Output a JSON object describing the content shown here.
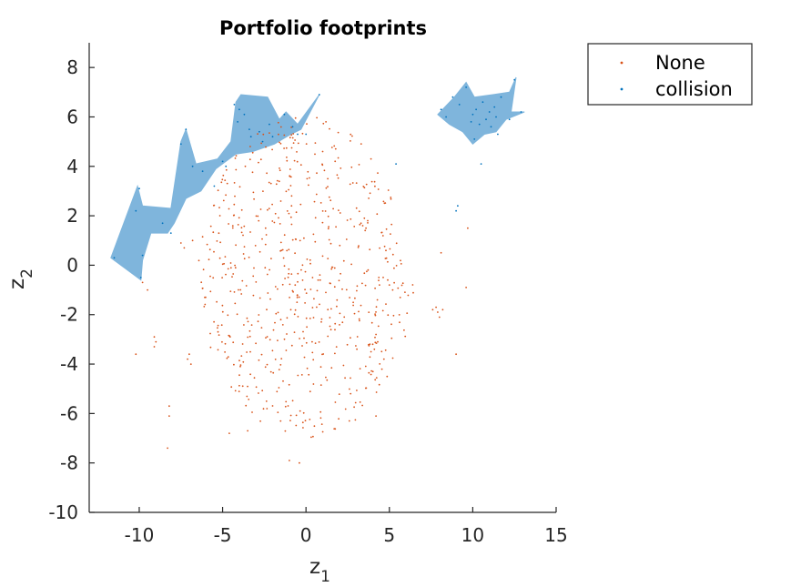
{
  "chart_data": {
    "type": "scatter",
    "title": "Portfolio footprints",
    "xlabel": "z",
    "xlabel_sub": "1",
    "ylabel": "z",
    "ylabel_sub": "2",
    "xlim": [
      -13,
      15
    ],
    "ylim": [
      -10,
      9
    ],
    "xticks": [
      -10,
      -5,
      0,
      5,
      10,
      15
    ],
    "yticks": [
      -10,
      -8,
      -6,
      -4,
      -2,
      0,
      2,
      4,
      6,
      8
    ],
    "grid": false,
    "legend_placement": "outside-top-right",
    "series": [
      {
        "name": "None",
        "color": "#d95319",
        "marker": "dot",
        "distribution": {
          "center": [
            0,
            -0.5
          ],
          "radius": 6.5,
          "count": 620
        },
        "extra_points": [
          [
            -8.3,
            -7.4
          ],
          [
            -8.2,
            -5.7
          ],
          [
            -8.2,
            -6.1
          ],
          [
            -9.1,
            -2.9
          ],
          [
            -9.0,
            -3.1
          ],
          [
            -9.1,
            -3.3
          ],
          [
            -10.2,
            -3.6
          ],
          [
            -9.5,
            -1.0
          ],
          [
            -9.8,
            -0.7
          ],
          [
            9.6,
            -0.9
          ],
          [
            9.0,
            -3.6
          ],
          [
            9.7,
            1.5
          ],
          [
            8.1,
            0.5
          ],
          [
            7.6,
            -1.8
          ],
          [
            7.9,
            -1.9
          ],
          [
            8.0,
            -2.1
          ],
          [
            7.8,
            -1.7
          ],
          [
            8.2,
            -1.8
          ],
          [
            3.9,
            4.3
          ],
          [
            -1.0,
            -7.9
          ],
          [
            -0.4,
            -8.0
          ],
          [
            1.0,
            4.6
          ],
          [
            -3.5,
            -6.7
          ],
          [
            -4.6,
            -6.8
          ],
          [
            4.2,
            -6.1
          ],
          [
            2.6,
            -6.3
          ],
          [
            3.3,
            1.7
          ],
          [
            3.5,
            1.9
          ],
          [
            3.6,
            1.5
          ],
          [
            3.4,
            1.6
          ],
          [
            3.7,
            1.8
          ],
          [
            4.0,
            -3.2
          ],
          [
            4.1,
            -3.4
          ],
          [
            4.3,
            -3.1
          ],
          [
            3.9,
            -3.5
          ],
          [
            4.2,
            -2.8
          ],
          [
            -7.1,
            -3.8
          ],
          [
            -6.9,
            -4.0
          ],
          [
            -7.0,
            -3.6
          ],
          [
            5.0,
            -0.8
          ],
          [
            5.2,
            -1.0
          ],
          [
            4.9,
            -0.6
          ],
          [
            -7.5,
            0.9
          ],
          [
            -7.3,
            0.7
          ],
          [
            -6.8,
            1.0
          ]
        ]
      },
      {
        "name": "collision",
        "color": "#0072bd",
        "marker": "dot",
        "points": [
          [
            -11.5,
            0.3
          ],
          [
            -10.2,
            2.2
          ],
          [
            -10.0,
            3.1
          ],
          [
            -9.8,
            0.4
          ],
          [
            -9.9,
            -0.5
          ],
          [
            -8.1,
            1.3
          ],
          [
            -8.6,
            1.7
          ],
          [
            -7.5,
            4.9
          ],
          [
            -7.2,
            5.5
          ],
          [
            -6.8,
            4.0
          ],
          [
            -6.2,
            3.8
          ],
          [
            -5.5,
            3.2
          ],
          [
            -5.0,
            4.2
          ],
          [
            -4.8,
            4.0
          ],
          [
            -4.3,
            6.5
          ],
          [
            -4.0,
            6.3
          ],
          [
            -4.1,
            5.8
          ],
          [
            -3.7,
            6.1
          ],
          [
            -3.4,
            5.5
          ],
          [
            -3.3,
            5.2
          ],
          [
            -2.8,
            5.4
          ],
          [
            -2.6,
            5.0
          ],
          [
            -2.2,
            5.7
          ],
          [
            -2.0,
            5.2
          ],
          [
            -1.3,
            6.1
          ],
          [
            -0.8,
            5.6
          ],
          [
            -0.5,
            5.3
          ],
          [
            0.0,
            5.3
          ],
          [
            0.8,
            6.9
          ],
          [
            5.4,
            4.1
          ],
          [
            9.1,
            2.4
          ],
          [
            9.0,
            2.2
          ],
          [
            10.5,
            4.1
          ],
          [
            8.1,
            6.3
          ],
          [
            8.4,
            6.0
          ],
          [
            8.8,
            6.8
          ],
          [
            9.2,
            6.5
          ],
          [
            9.6,
            7.2
          ],
          [
            9.9,
            5.8
          ],
          [
            10.0,
            6.1
          ],
          [
            10.2,
            6.3
          ],
          [
            10.4,
            5.7
          ],
          [
            10.6,
            6.6
          ],
          [
            10.8,
            5.9
          ],
          [
            11.0,
            6.2
          ],
          [
            11.1,
            5.6
          ],
          [
            11.3,
            6.4
          ],
          [
            11.4,
            6.0
          ],
          [
            11.7,
            6.8
          ],
          [
            12.2,
            5.9
          ],
          [
            12.5,
            7.5
          ],
          [
            12.9,
            6.2
          ],
          [
            11.5,
            5.3
          ],
          [
            10.1,
            5.1
          ]
        ],
        "footprints": [
          [
            [
              -11.7,
              0.3
            ],
            [
              -10.1,
              3.2
            ],
            [
              -9.8,
              2.4
            ],
            [
              -8.1,
              2.3
            ],
            [
              -7.5,
              5.0
            ],
            [
              -7.2,
              5.5
            ],
            [
              -6.6,
              4.1
            ],
            [
              -5.3,
              4.3
            ],
            [
              -4.5,
              5.0
            ],
            [
              -4.2,
              6.6
            ],
            [
              -3.9,
              6.9
            ],
            [
              -2.3,
              6.8
            ],
            [
              -1.6,
              5.9
            ],
            [
              -1.2,
              6.2
            ],
            [
              -0.5,
              5.7
            ],
            [
              0.8,
              6.9
            ],
            [
              -0.3,
              5.5
            ],
            [
              -0.9,
              5.3
            ],
            [
              -1.9,
              4.9
            ],
            [
              -3.2,
              4.6
            ],
            [
              -4.2,
              4.5
            ],
            [
              -5.4,
              3.9
            ],
            [
              -6.3,
              3.0
            ],
            [
              -7.2,
              2.7
            ],
            [
              -7.9,
              1.7
            ],
            [
              -8.3,
              1.3
            ],
            [
              -9.3,
              1.3
            ],
            [
              -9.8,
              0.2
            ],
            [
              -9.9,
              -0.6
            ]
          ],
          [
            [
              7.9,
              6.1
            ],
            [
              8.9,
              6.8
            ],
            [
              9.6,
              7.4
            ],
            [
              10.1,
              6.8
            ],
            [
              11.2,
              6.9
            ],
            [
              12.2,
              7.0
            ],
            [
              12.6,
              7.6
            ],
            [
              12.3,
              6.2
            ],
            [
              13.1,
              6.2
            ],
            [
              12.0,
              5.9
            ],
            [
              11.4,
              5.4
            ],
            [
              10.7,
              5.3
            ],
            [
              10.0,
              4.9
            ],
            [
              9.4,
              5.4
            ],
            [
              8.6,
              5.7
            ]
          ]
        ]
      }
    ]
  }
}
